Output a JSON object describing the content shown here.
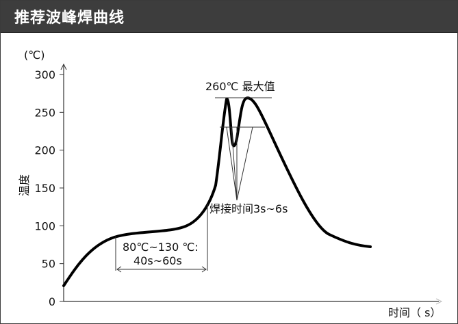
{
  "header": {
    "title": "推荐波峰焊曲线"
  },
  "chart_data": {
    "type": "line",
    "ylabel": "温度",
    "xlabel": "时间（ s）",
    "y_unit": "(℃)",
    "ylim": [
      0,
      300
    ],
    "yticks": [
      0,
      50,
      100,
      150,
      200,
      250,
      300
    ],
    "ytick_labels": [
      "0",
      "50",
      "100",
      "150",
      "200",
      "250",
      "300"
    ],
    "grid": false,
    "series": [
      {
        "values": [
          22,
          45,
          68,
          80,
          86,
          89,
          92,
          96,
          105,
          135,
          200,
          270,
          205,
          245,
          268,
          250,
          200,
          150,
          115,
          88,
          78,
          72
        ]
      }
    ],
    "annotations": {
      "peak": "260℃ 最大值",
      "preheat_line1": "80℃~130 ℃:",
      "preheat_line2": "40s~60s",
      "contact": "焊接时间3s~6s"
    }
  }
}
